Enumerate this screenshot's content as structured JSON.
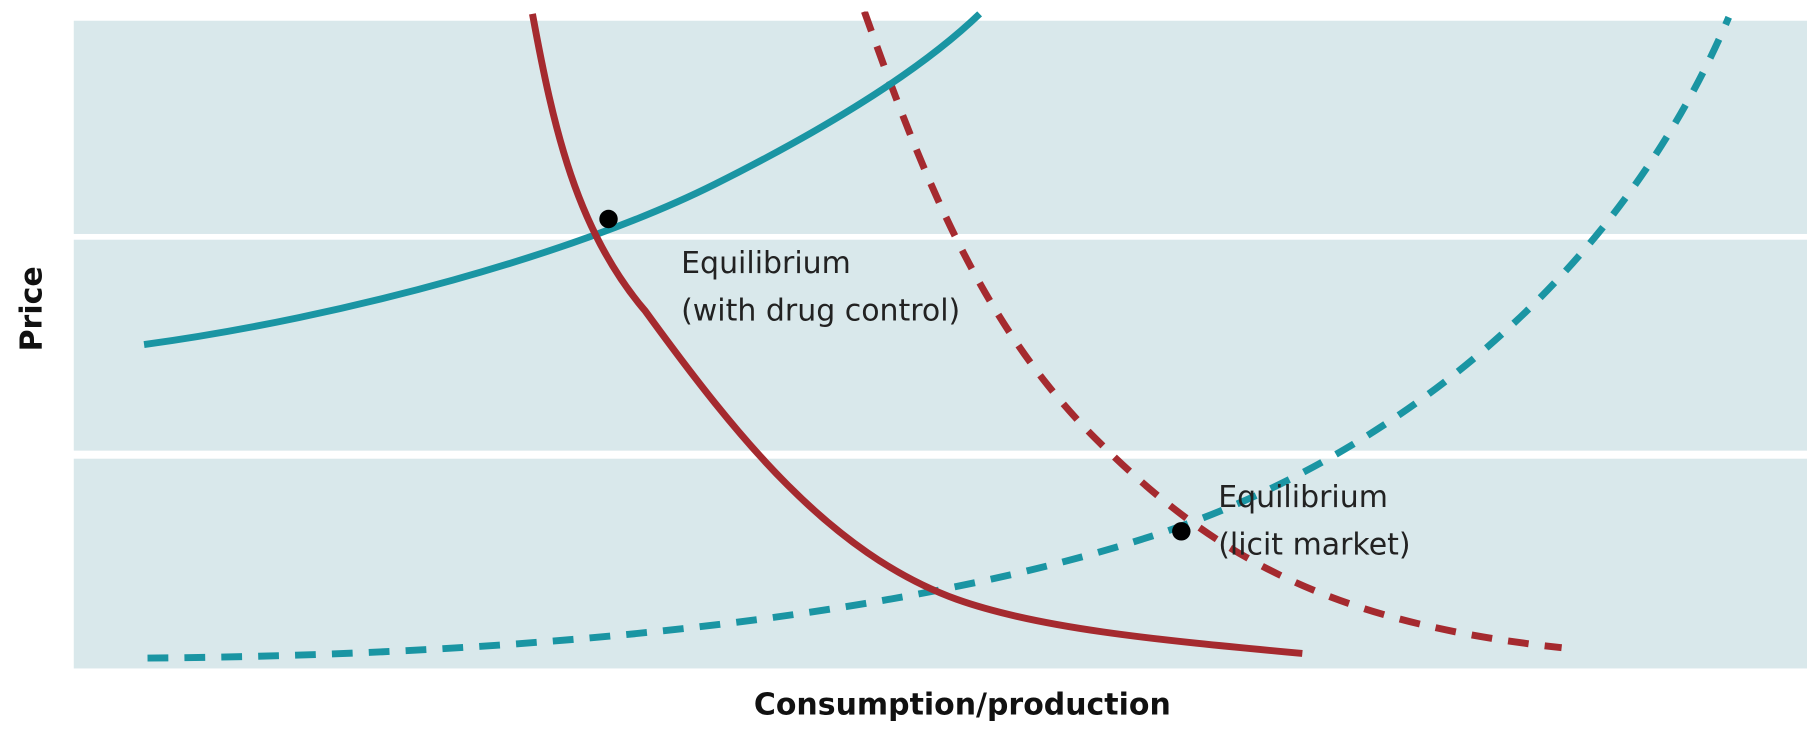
{
  "axes": {
    "y_label": "Price",
    "x_label": "Consumption/production"
  },
  "annotations": [
    {
      "line1": "Equilibrium",
      "line2": "(with drug control)"
    },
    {
      "line1": "Equilibrium",
      "line2": "(licit market)"
    }
  ]
}
